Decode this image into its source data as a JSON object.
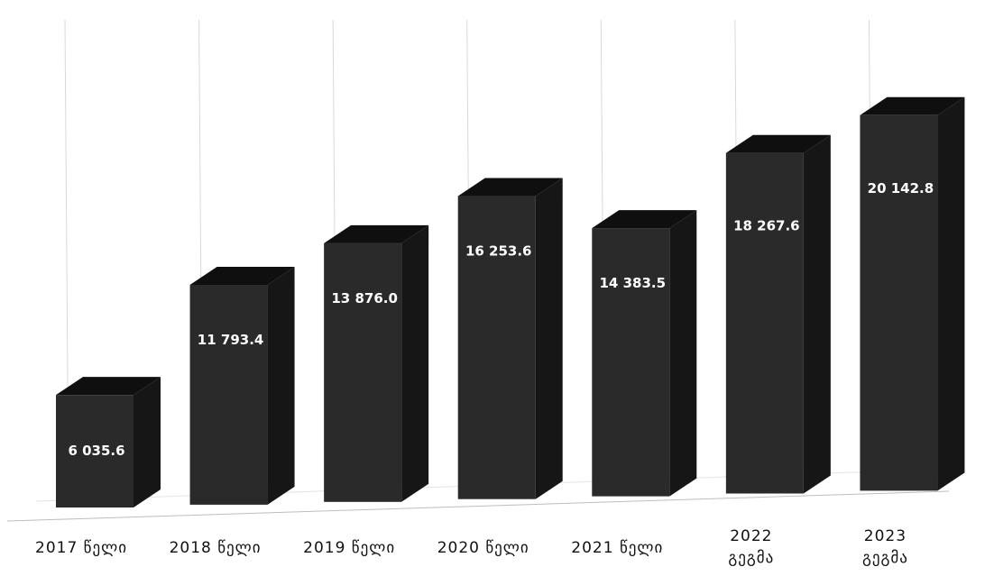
{
  "chart_data": {
    "type": "bar",
    "categories": [
      "2017 წელი",
      "2018 წელი",
      "2019 წელი",
      "2020 წელი",
      "2021 წელი",
      "2022 გეგმა",
      "2023 გეგმა"
    ],
    "category_lines": [
      [
        "2017 წელი"
      ],
      [
        "2018 წელი"
      ],
      [
        "2019 წელი"
      ],
      [
        "2020 წელი"
      ],
      [
        "2021 წელი"
      ],
      [
        "2022",
        "გეგმა"
      ],
      [
        "2023",
        "გეგმა"
      ]
    ],
    "values": [
      6035.6,
      11793.4,
      13876.0,
      16253.6,
      14383.5,
      18267.6,
      20142.8
    ],
    "data_labels": [
      "6 035.6",
      "11 793.4",
      "13 876.0",
      "16 253.6",
      "14 383.5",
      "18 267.6",
      "20 142.8"
    ],
    "title": "",
    "xlabel": "",
    "ylabel": "",
    "ylim": [
      0,
      22000
    ],
    "grid": true,
    "style": "3d-column",
    "colors": {
      "bar_front": "#2a2a2a",
      "bar_side": "#161616",
      "bar_top": "#0f0f0f",
      "label": "#ffffff",
      "grid": "#d9d9d9"
    }
  }
}
